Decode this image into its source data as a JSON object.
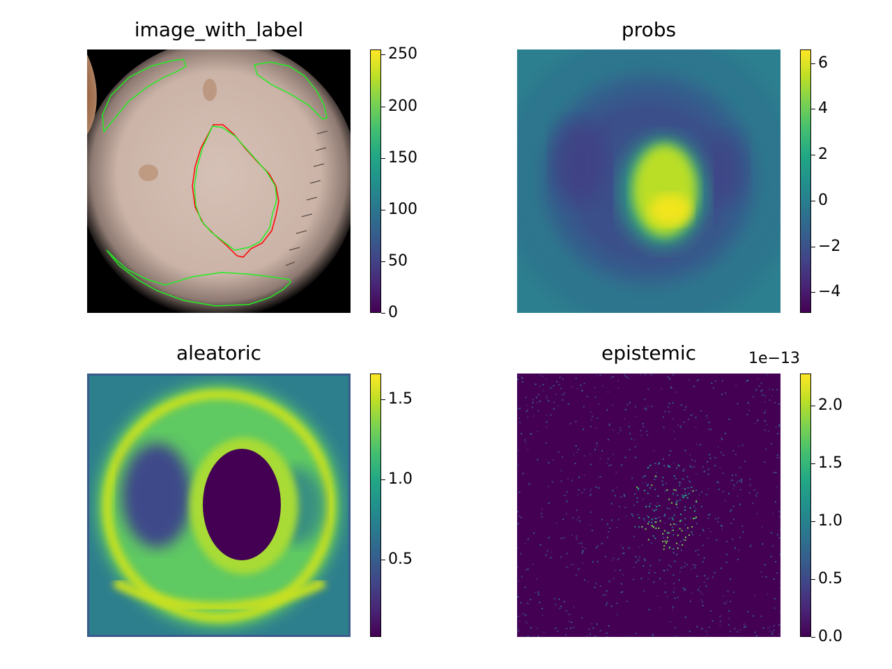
{
  "chart_data": [
    {
      "type": "heatmap",
      "title": "image_with_label",
      "colormap": "viridis",
      "colorbar": {
        "range": [
          0,
          255
        ],
        "ticks": [
          0,
          50,
          100,
          150,
          200,
          250
        ],
        "tick_labels": [
          "0",
          "50",
          "100",
          "150",
          "200",
          "250"
        ]
      },
      "overlays": [
        {
          "kind": "label-contour",
          "color": "#ff0000"
        },
        {
          "kind": "prediction-contour",
          "color": "#00ff00"
        }
      ],
      "colors": {
        "background": "#000000",
        "skin": "#cbb2a6",
        "lesion": "#8a5533"
      }
    },
    {
      "type": "heatmap",
      "title": "probs",
      "colormap": "viridis",
      "colorbar": {
        "range": [
          -4.9,
          6.6
        ],
        "ticks": [
          -4,
          -2,
          0,
          2,
          4,
          6
        ],
        "tick_labels": [
          "−4",
          "−2",
          "0",
          "2",
          "4",
          "6"
        ]
      }
    },
    {
      "type": "heatmap",
      "title": "aleatoric",
      "colormap": "viridis",
      "colorbar": {
        "range": [
          0.02,
          1.66
        ],
        "ticks": [
          0.5,
          1.0,
          1.5
        ],
        "tick_labels": [
          "0.5",
          "1.0",
          "1.5"
        ]
      }
    },
    {
      "type": "heatmap",
      "title": "epistemic",
      "colormap": "viridis",
      "colorbar": {
        "range": [
          0.0,
          2.28
        ],
        "ticks": [
          0.0,
          0.5,
          1.0,
          1.5,
          2.0
        ],
        "tick_labels": [
          "0.0",
          "0.5",
          "1.0",
          "1.5",
          "2.0"
        ],
        "offset_text": "1e−13"
      }
    }
  ]
}
